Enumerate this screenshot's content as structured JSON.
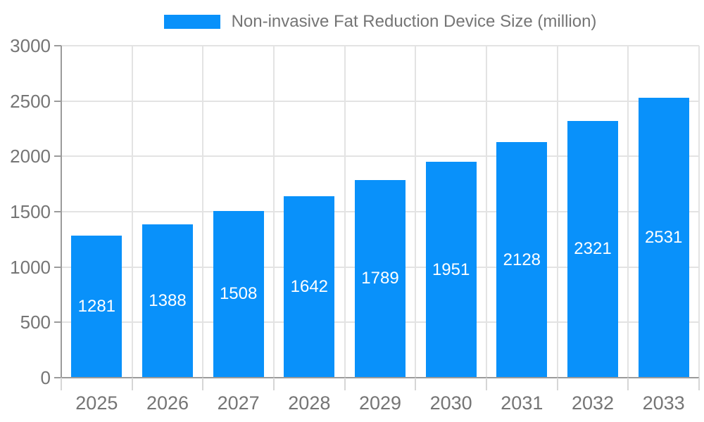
{
  "legend": {
    "label": "Non-invasive Fat Reduction Device Size (million)"
  },
  "chart_data": {
    "type": "bar",
    "title": "Non-invasive Fat Reduction Device Size (million)",
    "categories": [
      "2025",
      "2026",
      "2027",
      "2028",
      "2029",
      "2030",
      "2031",
      "2032",
      "2033"
    ],
    "values": [
      1281,
      1388,
      1508,
      1642,
      1789,
      1951,
      2128,
      2321,
      2531
    ],
    "series_name": "Non-invasive Fat Reduction Device Size (million)",
    "xlabel": "",
    "ylabel": "",
    "ylim": [
      0,
      3000
    ],
    "yticks": [
      0,
      500,
      1000,
      1500,
      2000,
      2500,
      3000
    ],
    "grid": true,
    "legend_position": "top",
    "bar_color": "#0991fa",
    "value_label_color": "#ffffff",
    "axis_label_color": "#757575",
    "grid_color": "#e3e3e3",
    "axis_color": "#9b9b9b",
    "background_color": "#ffffff"
  }
}
